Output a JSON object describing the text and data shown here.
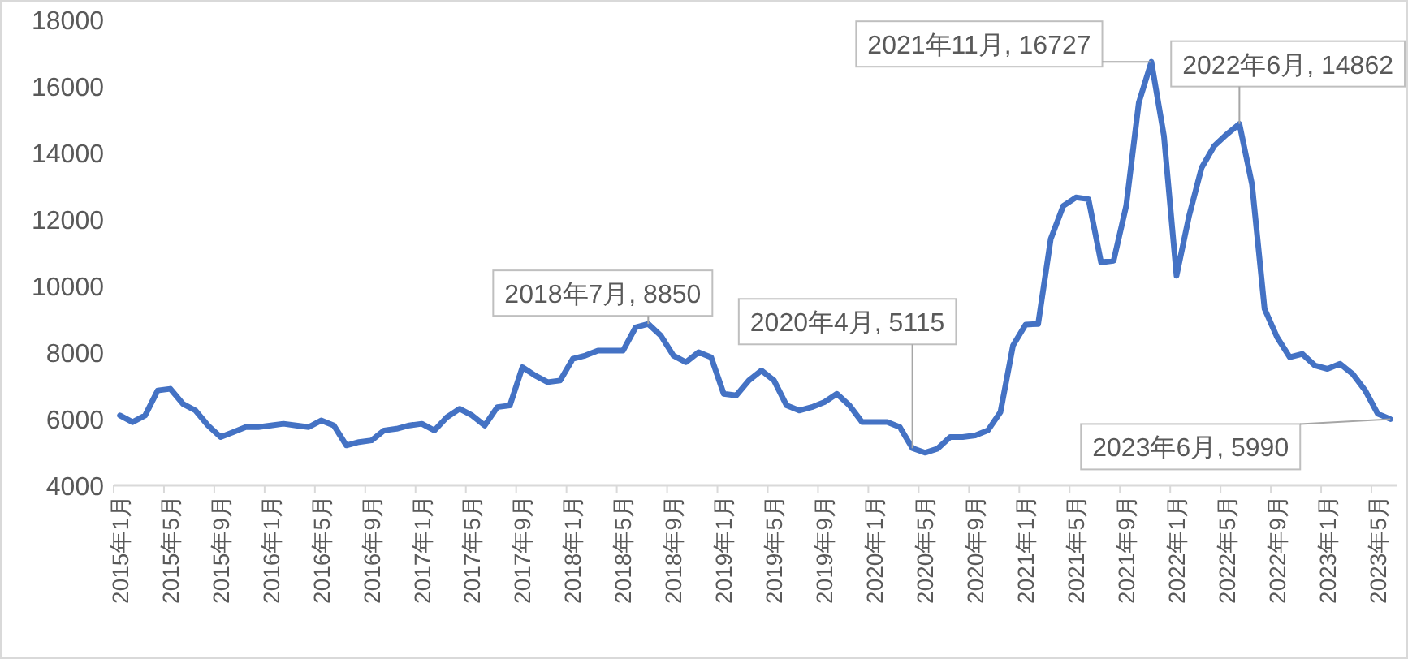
{
  "chart_data": {
    "type": "line",
    "color": "#4472c4",
    "grid": false,
    "marker": "none",
    "line_style": "solid",
    "x": [
      "2015-01",
      "2015-02",
      "2015-03",
      "2015-04",
      "2015-05",
      "2015-06",
      "2015-07",
      "2015-08",
      "2015-09",
      "2015-10",
      "2015-11",
      "2015-12",
      "2016-01",
      "2016-02",
      "2016-03",
      "2016-04",
      "2016-05",
      "2016-06",
      "2016-07",
      "2016-08",
      "2016-09",
      "2016-10",
      "2016-11",
      "2016-12",
      "2017-01",
      "2017-02",
      "2017-03",
      "2017-04",
      "2017-05",
      "2017-06",
      "2017-07",
      "2017-08",
      "2017-09",
      "2017-10",
      "2017-11",
      "2017-12",
      "2018-01",
      "2018-02",
      "2018-03",
      "2018-04",
      "2018-05",
      "2018-06",
      "2018-07",
      "2018-08",
      "2018-09",
      "2018-10",
      "2018-11",
      "2018-12",
      "2019-01",
      "2019-02",
      "2019-03",
      "2019-04",
      "2019-05",
      "2019-06",
      "2019-07",
      "2019-08",
      "2019-09",
      "2019-10",
      "2019-11",
      "2019-12",
      "2020-01",
      "2020-02",
      "2020-03",
      "2020-04",
      "2020-05",
      "2020-06",
      "2020-07",
      "2020-08",
      "2020-09",
      "2020-10",
      "2020-11",
      "2020-12",
      "2021-01",
      "2021-02",
      "2021-03",
      "2021-04",
      "2021-05",
      "2021-06",
      "2021-07",
      "2021-08",
      "2021-09",
      "2021-10",
      "2021-11",
      "2021-12",
      "2022-01",
      "2022-02",
      "2022-03",
      "2022-04",
      "2022-05",
      "2022-06",
      "2022-07",
      "2022-08",
      "2022-09",
      "2022-10",
      "2022-11",
      "2022-12",
      "2023-01",
      "2023-02",
      "2023-03",
      "2023-04",
      "2023-05",
      "2023-06"
    ],
    "values": [
      6100,
      5900,
      6100,
      6850,
      6900,
      6450,
      6250,
      5800,
      5450,
      5600,
      5750,
      5750,
      5800,
      5850,
      5800,
      5750,
      5950,
      5800,
      5200,
      5300,
      5350,
      5650,
      5700,
      5800,
      5850,
      5650,
      6050,
      6300,
      6100,
      5800,
      6350,
      6400,
      7550,
      7300,
      7100,
      7150,
      7800,
      7900,
      8050,
      8050,
      8050,
      8750,
      8850,
      8500,
      7900,
      7700,
      8000,
      7850,
      6750,
      6700,
      7150,
      7450,
      7150,
      6400,
      6250,
      6350,
      6500,
      6750,
      6400,
      5900,
      5900,
      5900,
      5750,
      5115,
      4980,
      5100,
      5450,
      5450,
      5500,
      5650,
      6200,
      8200,
      8830,
      8850,
      11400,
      12400,
      12650,
      12600,
      10700,
      10750,
      12400,
      15500,
      16727,
      14500,
      10300,
      12100,
      13550,
      14200,
      14550,
      14862,
      13050,
      9300,
      8450,
      7850,
      7950,
      7600,
      7500,
      7650,
      7350,
      6850,
      6150,
      5990
    ],
    "xlim": [
      "2014-12-16",
      "2023-06-16"
    ],
    "xticks": [
      {
        "value": "2015-01",
        "label": "2015年1月"
      },
      {
        "value": "2015-05",
        "label": "2015年5月"
      },
      {
        "value": "2015-09",
        "label": "2015年9月"
      },
      {
        "value": "2016-01",
        "label": "2016年1月"
      },
      {
        "value": "2016-05",
        "label": "2016年5月"
      },
      {
        "value": "2016-09",
        "label": "2016年9月"
      },
      {
        "value": "2017-01",
        "label": "2017年1月"
      },
      {
        "value": "2017-05",
        "label": "2017年5月"
      },
      {
        "value": "2017-09",
        "label": "2017年9月"
      },
      {
        "value": "2018-01",
        "label": "2018年1月"
      },
      {
        "value": "2018-05",
        "label": "2018年5月"
      },
      {
        "value": "2018-09",
        "label": "2018年9月"
      },
      {
        "value": "2019-01",
        "label": "2019年1月"
      },
      {
        "value": "2019-05",
        "label": "2019年5月"
      },
      {
        "value": "2019-09",
        "label": "2019年9月"
      },
      {
        "value": "2020-01",
        "label": "2020年1月"
      },
      {
        "value": "2020-05",
        "label": "2020年5月"
      },
      {
        "value": "2020-09",
        "label": "2020年9月"
      },
      {
        "value": "2021-01",
        "label": "2021年1月"
      },
      {
        "value": "2021-05",
        "label": "2021年5月"
      },
      {
        "value": "2021-09",
        "label": "2021年9月"
      },
      {
        "value": "2022-01",
        "label": "2022年1月"
      },
      {
        "value": "2022-05",
        "label": "2022年5月"
      },
      {
        "value": "2022-09",
        "label": "2022年9月"
      },
      {
        "value": "2023-01",
        "label": "2023年1月"
      },
      {
        "value": "2023-05",
        "label": "2023年5月"
      }
    ],
    "ylim": [
      4000,
      18000
    ],
    "yticks": [
      4000,
      6000,
      8000,
      10000,
      12000,
      14000,
      16000,
      18000
    ],
    "annotations": [
      {
        "text": "2018年7月, 8850",
        "x": "2018-07",
        "y": 8850
      },
      {
        "text": "2020年4月, 5115",
        "x": "2020-04",
        "y": 5115
      },
      {
        "text": "2021年11月, 16727",
        "x": "2021-11",
        "y": 16727
      },
      {
        "text": "2022年6月, 14862",
        "x": "2022-06",
        "y": 14862
      },
      {
        "text": "2023年6月, 5990",
        "x": "2023-06",
        "y": 5990
      }
    ]
  }
}
